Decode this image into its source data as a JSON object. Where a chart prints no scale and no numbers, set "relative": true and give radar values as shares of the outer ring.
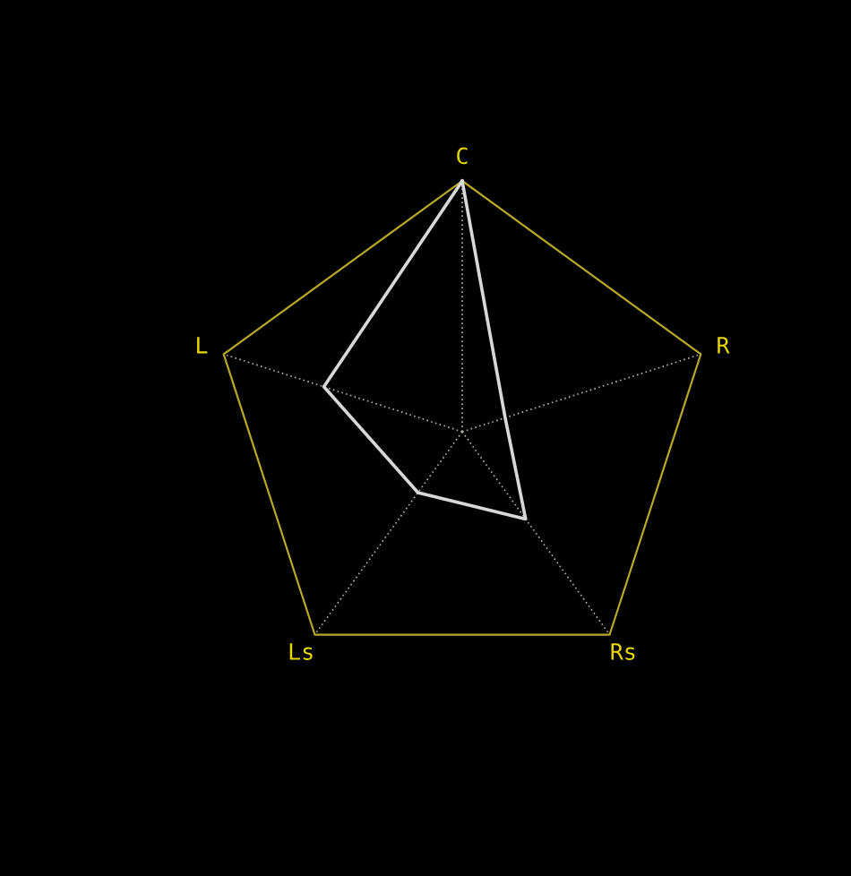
{
  "chart_data": {
    "type": "radar",
    "relative": true,
    "categories": [
      "C",
      "R",
      "Rs",
      "Ls",
      "L"
    ],
    "series": [
      {
        "color": "#d8d8d8",
        "values": [
          1.0,
          0.18,
          0.43,
          0.3,
          0.58
        ]
      }
    ]
  }
}
